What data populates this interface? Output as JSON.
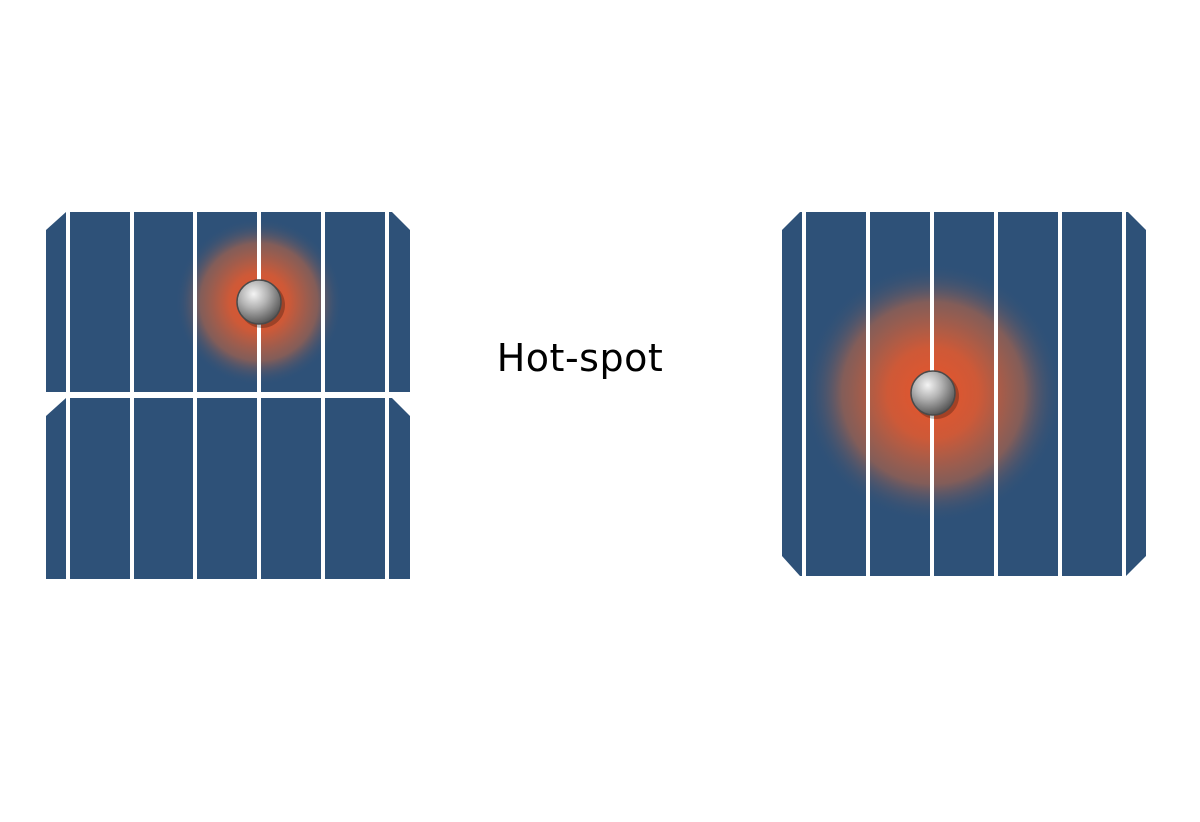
{
  "label": "Hot-spot",
  "colors": {
    "background": "#ffffff",
    "cell_blue": "#2e5178",
    "finger_line": "#ffffff",
    "hotspot_core": "#e8542b",
    "ball_light": "#e6e6e6",
    "ball_dark": "#6a6a6a"
  },
  "left_panel": {
    "pieces": 2,
    "finger_count": 6,
    "defect": "hot-spot"
  },
  "right_panel": {
    "pieces": 1,
    "finger_count": 6,
    "defect": "hot-spot"
  }
}
